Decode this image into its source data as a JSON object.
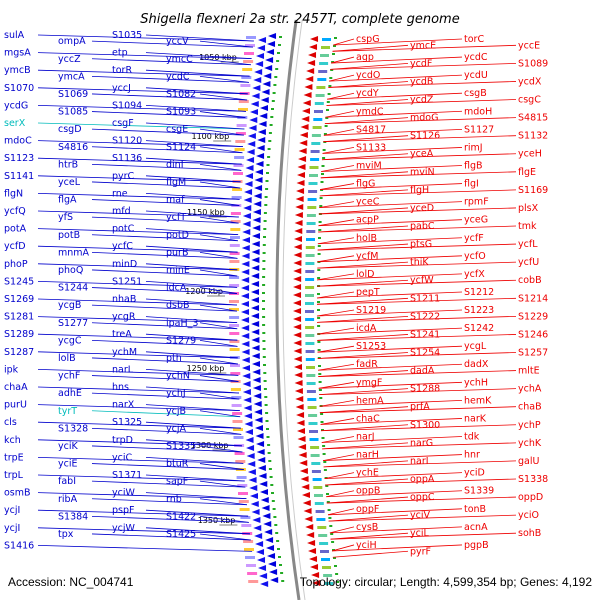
{
  "title": "Shigella flexneri 2a str. 2457T, complete genome",
  "footer": {
    "accession": "Accession: NC_004741",
    "topology": "Topology: circular; Length: 4,599,354 bp; Genes: 4,192"
  },
  "colors": {
    "left": "#0000cc",
    "right": "#ee0000",
    "cyan": "#00bbbb",
    "backbone": "#888888"
  },
  "kbp_ticks": [
    "1050 kbp",
    "1100 kbp",
    "1150 kbp",
    "1200 kbp",
    "1250 kbp",
    "1300 kbp",
    "1350 kbp"
  ],
  "left_genes": [
    {
      "text": "sulA"
    },
    {
      "text": "ompA"
    },
    {
      "text": "S1035"
    },
    {
      "text": "yccV"
    },
    {
      "text": "mgsA"
    },
    {
      "text": "yccZ"
    },
    {
      "text": "etp"
    },
    {
      "text": "ymcC"
    },
    {
      "text": "ymcB"
    },
    {
      "text": "ymcA"
    },
    {
      "text": "torR"
    },
    {
      "text": "ycdC"
    },
    {
      "text": "S1070"
    },
    {
      "text": "S1069"
    },
    {
      "text": "yccJ"
    },
    {
      "text": "S1082"
    },
    {
      "text": "ycdG"
    },
    {
      "text": "S1085"
    },
    {
      "text": "S1094"
    },
    {
      "text": "S1093"
    },
    {
      "text": "serX",
      "cyan": true
    },
    {
      "text": "csgD"
    },
    {
      "text": "csgF"
    },
    {
      "text": "csgE"
    },
    {
      "text": "mdoC"
    },
    {
      "text": "S4816"
    },
    {
      "text": "S1120"
    },
    {
      "text": "S1124"
    },
    {
      "text": "S1123"
    },
    {
      "text": "htrB"
    },
    {
      "text": "S1136"
    },
    {
      "text": "dinI"
    },
    {
      "text": "S1141"
    },
    {
      "text": "yceL"
    },
    {
      "text": "pyrC"
    },
    {
      "text": "flgM"
    },
    {
      "text": "flgN"
    },
    {
      "text": "flgA"
    },
    {
      "text": "rne"
    },
    {
      "text": "maf"
    },
    {
      "text": "ycfQ"
    },
    {
      "text": "yfS"
    },
    {
      "text": "mfd"
    },
    {
      "text": "ycfT"
    },
    {
      "text": "potA"
    },
    {
      "text": "potB"
    },
    {
      "text": "potC"
    },
    {
      "text": "potD"
    },
    {
      "text": "ycfD"
    },
    {
      "text": "mnmA"
    },
    {
      "text": "ycfC"
    },
    {
      "text": "purB"
    },
    {
      "text": "phoP"
    },
    {
      "text": "phoQ"
    },
    {
      "text": "minD"
    },
    {
      "text": "minE"
    },
    {
      "text": "S1245"
    },
    {
      "text": "S1244"
    },
    {
      "text": "S1251"
    },
    {
      "text": "ldcA"
    },
    {
      "text": "S1269"
    },
    {
      "text": "ycgB"
    },
    {
      "text": "nhaB"
    },
    {
      "text": "dsbB"
    },
    {
      "text": "S1281"
    },
    {
      "text": "S1277"
    },
    {
      "text": "ycgR"
    },
    {
      "text": "ipaH_3"
    },
    {
      "text": "S1289"
    },
    {
      "text": "ycgC"
    },
    {
      "text": "treA"
    },
    {
      "text": "S1279"
    },
    {
      "text": "S1287"
    },
    {
      "text": "lolB"
    },
    {
      "text": "ychM"
    },
    {
      "text": "pth"
    },
    {
      "text": "ipk"
    },
    {
      "text": "ychF"
    },
    {
      "text": "narL"
    },
    {
      "text": "ychN"
    },
    {
      "text": "chaA"
    },
    {
      "text": "adhE"
    },
    {
      "text": "hns"
    },
    {
      "text": "ychJ"
    },
    {
      "text": "purU"
    },
    {
      "text": "tyrT",
      "cyan": true
    },
    {
      "text": "narX"
    },
    {
      "text": "ycjB"
    },
    {
      "text": "cls"
    },
    {
      "text": "S1328"
    },
    {
      "text": "S1325"
    },
    {
      "text": "ycjA"
    },
    {
      "text": "kch"
    },
    {
      "text": "yciK"
    },
    {
      "text": "trpD"
    },
    {
      "text": "S1335"
    },
    {
      "text": "trpE"
    },
    {
      "text": "yciE"
    },
    {
      "text": "yciC"
    },
    {
      "text": "btuR"
    },
    {
      "text": "trpL"
    },
    {
      "text": "fabI"
    },
    {
      "text": "S1371"
    },
    {
      "text": "sapF"
    },
    {
      "text": "osmB"
    },
    {
      "text": "ribA"
    },
    {
      "text": "yciW"
    },
    {
      "text": "rnb"
    },
    {
      "text": "ycjI"
    },
    {
      "text": "S1384"
    },
    {
      "text": "pspF"
    },
    {
      "text": "S1422"
    },
    {
      "text": "ycjI"
    },
    {
      "text": "tpx"
    },
    {
      "text": "ycjW"
    },
    {
      "text": "S1425"
    },
    {
      "text": "S1416"
    }
  ],
  "right_genes": [
    {
      "text": "cspG"
    },
    {
      "text": "ymcE"
    },
    {
      "text": "torC"
    },
    {
      "text": "yccE"
    },
    {
      "text": "agp"
    },
    {
      "text": "ycdF"
    },
    {
      "text": "ycdC"
    },
    {
      "text": "S1089"
    },
    {
      "text": "ycdO"
    },
    {
      "text": "ycdB"
    },
    {
      "text": "ycdU"
    },
    {
      "text": "ycdX"
    },
    {
      "text": "ycdY"
    },
    {
      "text": "ycdZ"
    },
    {
      "text": "csgB"
    },
    {
      "text": "csgC"
    },
    {
      "text": "ymdC"
    },
    {
      "text": "mdoG"
    },
    {
      "text": "mdoH"
    },
    {
      "text": "S4815"
    },
    {
      "text": "S4817"
    },
    {
      "text": "S1126"
    },
    {
      "text": "S1127"
    },
    {
      "text": "S1132"
    },
    {
      "text": "S1133"
    },
    {
      "text": "yceA"
    },
    {
      "text": "rimJ"
    },
    {
      "text": "yceH"
    },
    {
      "text": "mviM"
    },
    {
      "text": "mviN"
    },
    {
      "text": "flgB"
    },
    {
      "text": "flgE"
    },
    {
      "text": "flgG"
    },
    {
      "text": "flgH"
    },
    {
      "text": "flgI"
    },
    {
      "text": "S1169"
    },
    {
      "text": "yceC"
    },
    {
      "text": "yceD"
    },
    {
      "text": "rpmF"
    },
    {
      "text": "plsX"
    },
    {
      "text": "acpP"
    },
    {
      "text": "pabC"
    },
    {
      "text": "yceG"
    },
    {
      "text": "tmk"
    },
    {
      "text": "holB"
    },
    {
      "text": "ptsG"
    },
    {
      "text": "ycfF"
    },
    {
      "text": "ycfL"
    },
    {
      "text": "ycfM"
    },
    {
      "text": "thiK"
    },
    {
      "text": "ycfO"
    },
    {
      "text": "ycfU"
    },
    {
      "text": "lolD"
    },
    {
      "text": "ycfW"
    },
    {
      "text": "ycfX"
    },
    {
      "text": "cobB"
    },
    {
      "text": "pepT"
    },
    {
      "text": "S1211"
    },
    {
      "text": "S1212"
    },
    {
      "text": "S1214"
    },
    {
      "text": "S1219"
    },
    {
      "text": "S1222"
    },
    {
      "text": "S1223"
    },
    {
      "text": "S1229"
    },
    {
      "text": "icdA"
    },
    {
      "text": "S1241"
    },
    {
      "text": "S1242"
    },
    {
      "text": "S1246"
    },
    {
      "text": "S1253"
    },
    {
      "text": "S1254"
    },
    {
      "text": "ycgL"
    },
    {
      "text": "S1257"
    },
    {
      "text": "fadR"
    },
    {
      "text": "dadA"
    },
    {
      "text": "dadX"
    },
    {
      "text": "mltE"
    },
    {
      "text": "ymgF"
    },
    {
      "text": "S1288"
    },
    {
      "text": "ychH"
    },
    {
      "text": "ychA"
    },
    {
      "text": "hemA"
    },
    {
      "text": "prfA"
    },
    {
      "text": "hemK"
    },
    {
      "text": "chaB"
    },
    {
      "text": "chaC"
    },
    {
      "text": "S1300"
    },
    {
      "text": "narK"
    },
    {
      "text": "ychP"
    },
    {
      "text": "narJ"
    },
    {
      "text": "narG"
    },
    {
      "text": "tdk"
    },
    {
      "text": "ychK"
    },
    {
      "text": "narH"
    },
    {
      "text": "narI"
    },
    {
      "text": "hnr"
    },
    {
      "text": "galU"
    },
    {
      "text": "ychE"
    },
    {
      "text": "oppA"
    },
    {
      "text": "yciD"
    },
    {
      "text": "S1338"
    },
    {
      "text": "oppB"
    },
    {
      "text": "oppC"
    },
    {
      "text": "S1339"
    },
    {
      "text": "oppD"
    },
    {
      "text": "oppF"
    },
    {
      "text": "yciV"
    },
    {
      "text": "tonB"
    },
    {
      "text": "yciO"
    },
    {
      "text": "cysB"
    },
    {
      "text": "yciL"
    },
    {
      "text": "acnA"
    },
    {
      "text": "sohB"
    },
    {
      "text": "yciH"
    },
    {
      "text": "pyrF"
    },
    {
      "text": "pgpB"
    }
  ]
}
